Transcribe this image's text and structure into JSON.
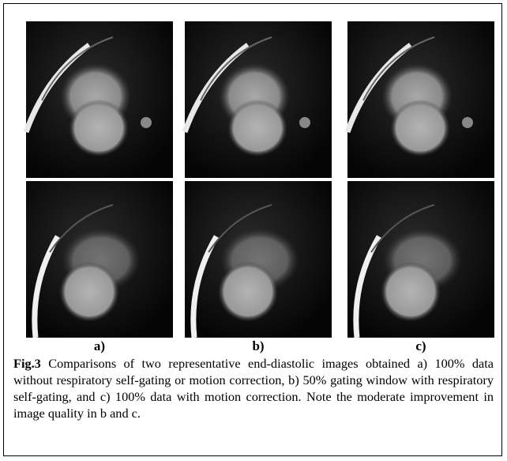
{
  "figure": {
    "panel_labels": [
      "a)",
      "b)",
      "c)"
    ],
    "caption": {
      "label": "Fig.3",
      "text": " Comparisons of two representative end-diastolic images obtained a) 100% data without respiratory self-gating or motion correction, b) 50% gating window with respiratory self-gating, and c) 100% data with motion correction. Note the moderate improvement in image quality in b and c."
    }
  }
}
